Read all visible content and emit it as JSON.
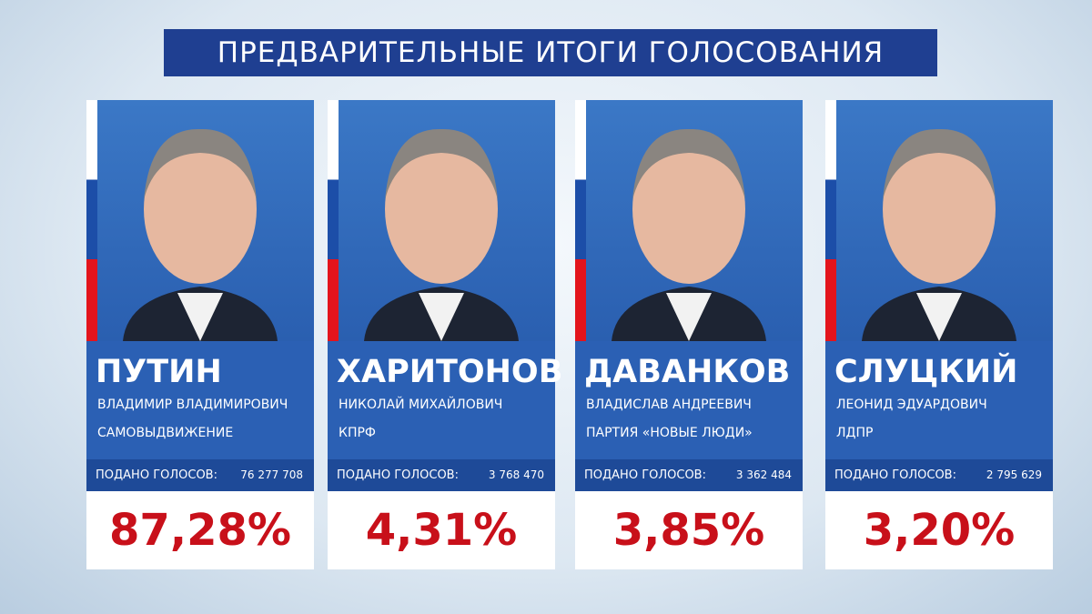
{
  "header": {
    "title": "ПРЕДВАРИТЕЛЬНЫЕ ИТОГИ ГОЛОСОВАНИЯ"
  },
  "candidates": [
    {
      "surname": "ПУТИН",
      "name": "ВЛАДИМИР ВЛАДИМИРОВИЧ",
      "party": "САМОВЫДВИЖЕНИЕ",
      "votes_label": "ПОДАНО ГОЛОСОВ:",
      "votes": "76 277 708",
      "percent": "87,28%"
    },
    {
      "surname": "ХАРИТОНОВ",
      "name": "НИКОЛАЙ МИХАЙЛОВИЧ",
      "party": "КПРФ",
      "votes_label": "ПОДАНО ГОЛОСОВ:",
      "votes": "3 768 470",
      "percent": "4,31%"
    },
    {
      "surname": "ДАВАНКОВ",
      "name": "ВЛАДИСЛАВ АНДРЕЕВИЧ",
      "party": "ПАРТИЯ «НОВЫЕ ЛЮДИ»",
      "votes_label": "ПОДАНО ГОЛОСОВ:",
      "votes": "3 362 484",
      "percent": "3,85%"
    },
    {
      "surname": "СЛУЦКИЙ",
      "name": "ЛЕОНИД ЭДУАРДОВИЧ",
      "party": "ЛДПР",
      "votes_label": "ПОДАНО ГОЛОСОВ:",
      "votes": "2 795 629",
      "percent": "3,20%"
    }
  ]
}
